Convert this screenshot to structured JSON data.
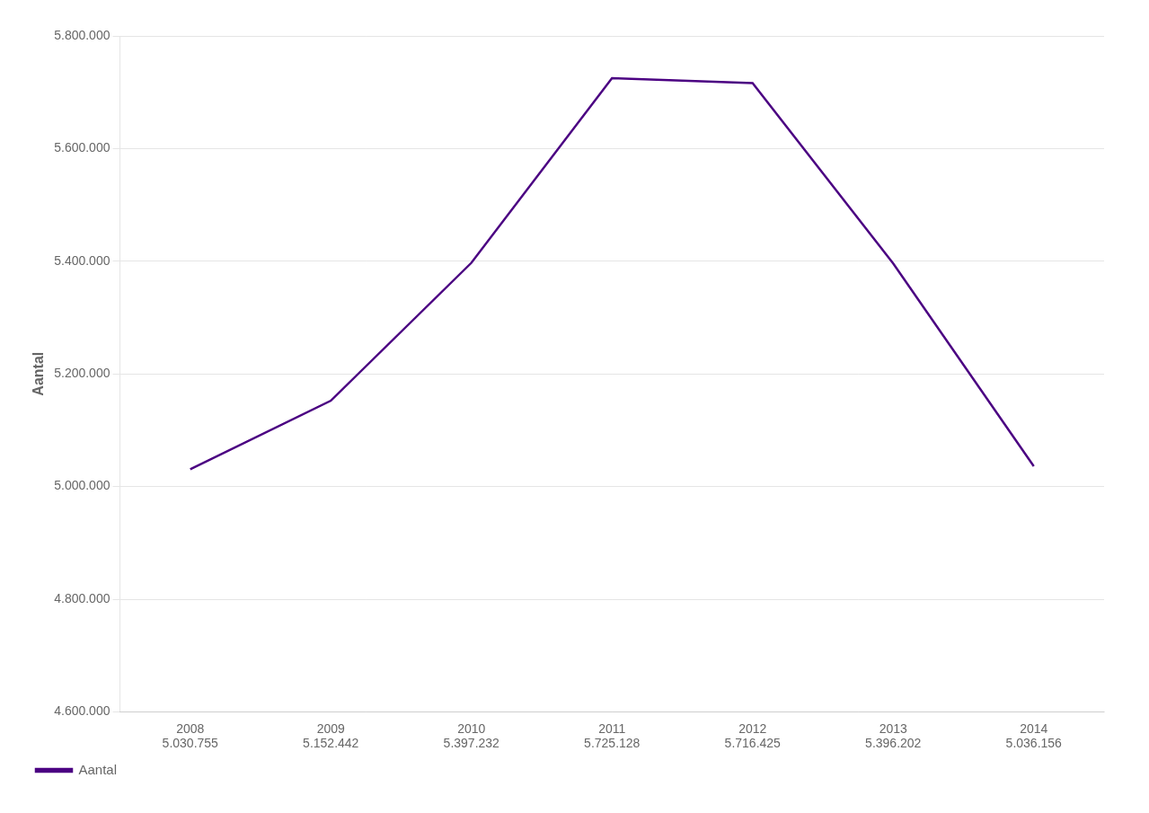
{
  "chart_data": {
    "type": "line",
    "ylabel": "Aantal",
    "categories": [
      "2008",
      "2009",
      "2010",
      "2011",
      "2012",
      "2013",
      "2014"
    ],
    "series": [
      {
        "name": "Aantal",
        "color": "#4B0082",
        "values": [
          5030755,
          5152442,
          5397232,
          5725128,
          5716425,
          5396202,
          5036156
        ],
        "value_labels": [
          "5.030.755",
          "5.152.442",
          "5.397.232",
          "5.725.128",
          "5.716.425",
          "5.396.202",
          "5.036.156"
        ]
      }
    ],
    "data_labels": true,
    "ylim": [
      4600000,
      5800000
    ],
    "yticks": [
      {
        "value": 4600000,
        "label": "4.600.000"
      },
      {
        "value": 4800000,
        "label": "4.800.000"
      },
      {
        "value": 5000000,
        "label": "5.000.000"
      },
      {
        "value": 5200000,
        "label": "5.200.000"
      },
      {
        "value": 5400000,
        "label": "5.400.000"
      },
      {
        "value": 5600000,
        "label": "5.600.000"
      },
      {
        "value": 5800000,
        "label": "5.800.000"
      }
    ],
    "grid": true,
    "legend": "lower left"
  }
}
